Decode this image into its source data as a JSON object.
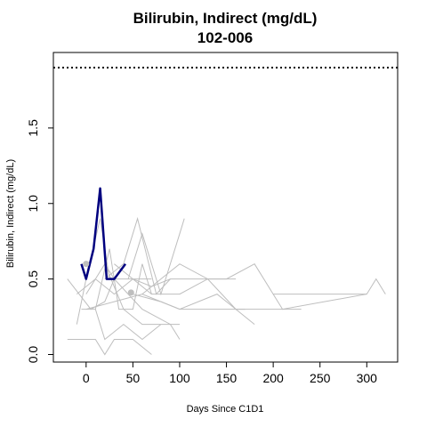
{
  "chart_data": {
    "type": "line",
    "title": "Bilirubin, Indirect (mg/dL)",
    "subtitle": "102-006",
    "xlabel": "Days Since C1D1",
    "ylabel": "Bilirubin, Indirect (mg/dL)",
    "xlim": [
      -35,
      333
    ],
    "ylim": [
      -0.05,
      2.0
    ],
    "x_ticks": [
      0,
      50,
      100,
      150,
      200,
      250,
      300
    ],
    "y_ticks": [
      0.0,
      0.5,
      1.0,
      1.5
    ],
    "y_tick_labels": [
      "0.0",
      "0.5",
      "1.0",
      "1.5"
    ],
    "grid": false,
    "reference_line": {
      "y": 1.9,
      "style": "dotted",
      "color": "#000000"
    },
    "colors": {
      "highlight": "#00007F",
      "background": "#BEBEBE",
      "point": "#BEBEBE"
    },
    "highlight_series": {
      "x": [
        -5,
        0,
        8,
        15,
        22,
        30,
        42
      ],
      "y": [
        0.6,
        0.5,
        0.7,
        1.1,
        0.5,
        0.5,
        0.6
      ]
    },
    "background_series": [
      {
        "x": [
          -20,
          5,
          20,
          30
        ],
        "y": [
          0.5,
          0.3,
          0.35,
          0.5
        ]
      },
      {
        "x": [
          -10,
          0,
          15,
          25,
          70
        ],
        "y": [
          0.2,
          0.5,
          0.9,
          0.5,
          0.5
        ]
      },
      {
        "x": [
          -5,
          10,
          20,
          40,
          60,
          80
        ],
        "y": [
          0.3,
          0.3,
          0.1,
          0.2,
          0.1,
          0.2
        ]
      },
      {
        "x": [
          -20,
          10,
          20,
          30,
          50,
          70
        ],
        "y": [
          0.1,
          0.1,
          0.0,
          0.1,
          0.1,
          0.0
        ]
      },
      {
        "x": [
          0,
          10,
          20,
          30,
          45,
          60,
          90,
          100
        ],
        "y": [
          0.4,
          0.5,
          0.6,
          0.5,
          0.4,
          0.3,
          0.2,
          0.1
        ]
      },
      {
        "x": [
          10,
          25,
          35,
          50,
          60,
          70
        ],
        "y": [
          0.3,
          0.7,
          0.3,
          0.3,
          0.6,
          0.4
        ]
      },
      {
        "x": [
          -10,
          10,
          30,
          50,
          70,
          100,
          130,
          160
        ],
        "y": [
          0.4,
          0.5,
          0.4,
          0.5,
          0.4,
          0.4,
          0.5,
          0.5
        ]
      },
      {
        "x": [
          20,
          40,
          55,
          75,
          90
        ],
        "y": [
          0.5,
          0.6,
          0.9,
          0.4,
          0.5
        ]
      },
      {
        "x": [
          30,
          50,
          70,
          90,
          100
        ],
        "y": [
          0.6,
          0.5,
          0.45,
          0.5,
          0.5
        ]
      },
      {
        "x": [
          45,
          60,
          80,
          100,
          105
        ],
        "y": [
          0.5,
          0.8,
          0.4,
          0.8,
          0.9
        ]
      },
      {
        "x": [
          60,
          80,
          100,
          130,
          145,
          160,
          180
        ],
        "y": [
          0.4,
          0.5,
          0.6,
          0.5,
          0.4,
          0.3,
          0.2
        ]
      },
      {
        "x": [
          0,
          30,
          60,
          100,
          140,
          160,
          170
        ],
        "y": [
          0.3,
          0.35,
          0.4,
          0.3,
          0.4,
          0.3,
          0.3
        ]
      },
      {
        "x": [
          50,
          80,
          100,
          130,
          150,
          180,
          210,
          230
        ],
        "y": [
          0.4,
          0.35,
          0.3,
          0.3,
          0.3,
          0.3,
          0.3,
          0.3
        ]
      },
      {
        "x": [
          100,
          130,
          150,
          180,
          210,
          300,
          310,
          320
        ],
        "y": [
          0.5,
          0.5,
          0.5,
          0.6,
          0.3,
          0.4,
          0.5,
          0.4
        ]
      },
      {
        "x": [
          200,
          220,
          250,
          300
        ],
        "y": [
          0.4,
          0.4,
          0.4,
          0.4
        ]
      },
      {
        "x": [
          20,
          40,
          60,
          80,
          100
        ],
        "y": [
          0.6,
          0.3,
          0.2,
          0.2,
          0.2
        ]
      }
    ],
    "points": [
      {
        "x": 0,
        "y": 0.6
      },
      {
        "x": 48,
        "y": 0.41
      }
    ]
  }
}
